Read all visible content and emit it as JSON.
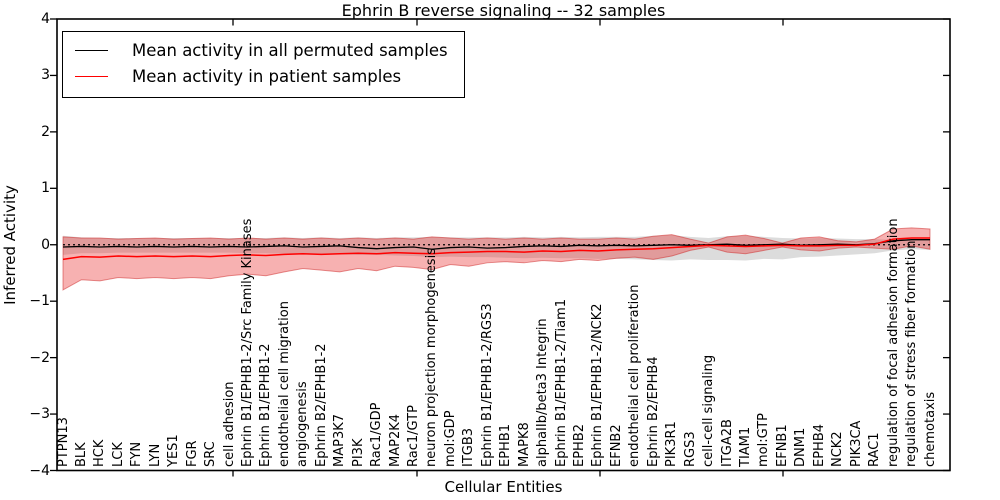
{
  "title": "Ephrin B reverse signaling -- 32 samples",
  "axes": {
    "ylabel": "Inferred Activity",
    "xlabel": "Cellular Entities",
    "y_tick_labels": [
      "4",
      "3",
      "2",
      "1",
      "0",
      "−1",
      "−2",
      "−3",
      "−4"
    ]
  },
  "legend": {
    "entries": [
      {
        "label": "Mean activity in all permuted samples",
        "color": "#000000"
      },
      {
        "label": "Mean activity in patient samples",
        "color": "#ff0000"
      }
    ]
  },
  "chart_data": {
    "type": "line",
    "title": "Ephrin B reverse signaling -- 32 samples",
    "xlabel": "Cellular Entities",
    "ylabel": "Inferred Activity",
    "ylim": [
      -4,
      4
    ],
    "yticks": [
      4,
      3,
      2,
      1,
      0,
      -1,
      -2,
      -3,
      -4
    ],
    "legend_position": "upper left",
    "grid": false,
    "baseline": {
      "y": 0,
      "style": "dotted",
      "color": "#000000"
    },
    "categories": [
      "PTPN13",
      "BLK",
      "HCK",
      "LCK",
      "FYN",
      "LYN",
      "YES1",
      "FGR",
      "SRC",
      "cell adhesion",
      "Ephrin B1/EPHB1-2/Src Family Kinases",
      "Ephrin B1/EPHB1-2",
      "endothelial cell migration",
      "angiogenesis",
      "Ephrin B2/EPHB1-2",
      "MAP3K7",
      "PI3K",
      "Rac1/GDP",
      "MAP2K4",
      "Rac1/GTP",
      "neuron projection morphogenesis",
      "mol:GDP",
      "ITGB3",
      "Ephrin B1/EPHB1-2/RGS3",
      "EPHB1",
      "MAPK8",
      "alphaIIb/beta3 Integrin",
      "Ephrin B1/EPHB1-2/Tiam1",
      "EPHB2",
      "Ephrin B1/EPHB1-2/NCK2",
      "EFNB2",
      "endothelial cell proliferation",
      "Ephrin B2/EPHB4",
      "PIK3R1",
      "RGS3",
      "cell-cell signaling",
      "ITGA2B",
      "TIAM1",
      "mol:GTP",
      "EFNB1",
      "DNM1",
      "EPHB4",
      "NCK2",
      "PIK3CA",
      "RAC1",
      "regulation of focal adhesion formation",
      "regulation of stress fiber formation",
      "chemotaxis"
    ],
    "series": [
      {
        "name": "Mean activity in all permuted samples",
        "color": "#000000",
        "values": [
          -0.04,
          -0.03,
          -0.04,
          -0.03,
          -0.04,
          -0.03,
          -0.04,
          -0.03,
          -0.04,
          -0.03,
          -0.04,
          -0.03,
          -0.02,
          -0.04,
          -0.03,
          -0.02,
          -0.05,
          -0.07,
          -0.05,
          -0.04,
          -0.08,
          -0.05,
          -0.04,
          -0.06,
          -0.05,
          -0.03,
          -0.02,
          -0.03,
          -0.01,
          -0.02,
          -0.01,
          -0.02,
          -0.01,
          0.0,
          -0.01,
          0.0,
          0.01,
          -0.01,
          0.0,
          0.01,
          -0.01,
          0.0,
          0.01,
          0.0,
          0.02,
          0.07,
          0.09,
          0.09
        ]
      },
      {
        "name": "Mean activity in patient samples",
        "color": "#ff0000",
        "values": [
          -0.26,
          -0.21,
          -0.22,
          -0.2,
          -0.21,
          -0.2,
          -0.21,
          -0.2,
          -0.21,
          -0.19,
          -0.18,
          -0.19,
          -0.17,
          -0.16,
          -0.17,
          -0.16,
          -0.15,
          -0.16,
          -0.14,
          -0.15,
          -0.16,
          -0.14,
          -0.13,
          -0.12,
          -0.12,
          -0.13,
          -0.11,
          -0.12,
          -0.1,
          -0.11,
          -0.09,
          -0.08,
          -0.07,
          -0.05,
          -0.03,
          -0.01,
          -0.02,
          -0.03,
          -0.02,
          -0.01,
          -0.02,
          -0.02,
          -0.01,
          -0.01,
          0.01,
          0.1,
          0.12,
          0.12
        ]
      }
    ],
    "bands": [
      {
        "name": "permuted samples band",
        "fill_color": "#dcdcdc",
        "upper": [
          0.16,
          0.13,
          0.12,
          0.12,
          0.12,
          0.12,
          0.12,
          0.12,
          0.12,
          0.12,
          0.12,
          0.12,
          0.13,
          0.12,
          0.13,
          0.12,
          0.13,
          0.12,
          0.13,
          0.13,
          0.14,
          0.13,
          0.13,
          0.13,
          0.13,
          0.14,
          0.13,
          0.14,
          0.13,
          0.14,
          0.14,
          0.14,
          0.16,
          0.17,
          0.14,
          0.12,
          0.15,
          0.16,
          0.14,
          0.12,
          0.11,
          0.12,
          0.11,
          0.1,
          0.1,
          0.09,
          0.08,
          0.08
        ],
        "lower": [
          -0.18,
          -0.15,
          -0.15,
          -0.14,
          -0.14,
          -0.14,
          -0.14,
          -0.14,
          -0.14,
          -0.14,
          -0.15,
          -0.15,
          -0.16,
          -0.16,
          -0.17,
          -0.17,
          -0.18,
          -0.18,
          -0.19,
          -0.2,
          -0.22,
          -0.21,
          -0.22,
          -0.22,
          -0.23,
          -0.24,
          -0.23,
          -0.24,
          -0.24,
          -0.25,
          -0.25,
          -0.26,
          -0.27,
          -0.28,
          -0.26,
          -0.27,
          -0.27,
          -0.28,
          -0.25,
          -0.26,
          -0.22,
          -0.21,
          -0.19,
          -0.17,
          -0.15,
          -0.1,
          -0.08,
          -0.09
        ]
      },
      {
        "name": "patient samples band",
        "fill_color": "rgba(235,50,50,0.38)",
        "edge_color": "rgba(205,35,35,0.5)",
        "upper": [
          0.14,
          0.12,
          0.12,
          0.1,
          0.11,
          0.12,
          0.1,
          0.11,
          0.12,
          0.1,
          0.12,
          0.1,
          0.12,
          0.1,
          0.12,
          0.1,
          0.12,
          0.1,
          0.12,
          0.1,
          0.14,
          0.12,
          0.1,
          0.12,
          0.1,
          0.12,
          0.1,
          0.12,
          0.1,
          0.1,
          0.12,
          0.1,
          0.15,
          0.18,
          0.1,
          0.03,
          0.14,
          0.17,
          0.11,
          0.03,
          0.12,
          0.14,
          0.07,
          0.05,
          0.1,
          0.28,
          0.3,
          0.28
        ],
        "lower": [
          -0.8,
          -0.62,
          -0.64,
          -0.58,
          -0.6,
          -0.58,
          -0.6,
          -0.58,
          -0.6,
          -0.55,
          -0.52,
          -0.55,
          -0.48,
          -0.42,
          -0.45,
          -0.48,
          -0.42,
          -0.46,
          -0.38,
          -0.4,
          -0.44,
          -0.35,
          -0.38,
          -0.32,
          -0.3,
          -0.32,
          -0.28,
          -0.3,
          -0.26,
          -0.28,
          -0.24,
          -0.22,
          -0.26,
          -0.2,
          -0.1,
          -0.04,
          -0.13,
          -0.16,
          -0.1,
          -0.04,
          -0.09,
          -0.11,
          -0.06,
          -0.04,
          -0.06,
          -0.08,
          -0.02,
          -0.08
        ]
      }
    ]
  }
}
